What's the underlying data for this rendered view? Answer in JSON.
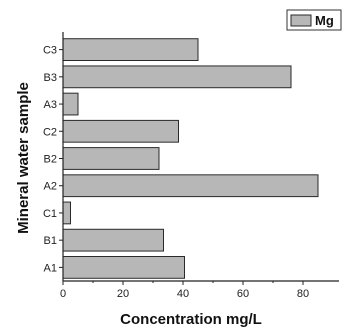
{
  "chart_data": {
    "type": "bar",
    "orientation": "horizontal",
    "categories": [
      "C3",
      "B3",
      "A3",
      "C2",
      "B2",
      "A2",
      "C1",
      "B1",
      "A1"
    ],
    "series": [
      {
        "name": "Mg",
        "values": [
          45,
          76,
          5,
          38.5,
          32,
          85,
          2.5,
          33.5,
          40.5
        ]
      }
    ],
    "xlabel": "Concentration mg/L",
    "ylabel": "Mineral water sample",
    "xlim": [
      0,
      92
    ],
    "x_ticks": [
      0,
      20,
      40,
      60,
      80
    ],
    "grid": false,
    "legend_position": "top-right"
  },
  "colors": {
    "bar_fill": "#b7b7b7",
    "bar_stroke": "#2a2a2a",
    "axis": "#222222",
    "text": "#111111"
  }
}
